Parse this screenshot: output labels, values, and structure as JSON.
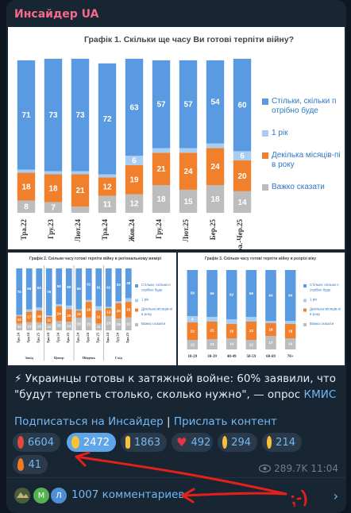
{
  "channel": {
    "name": "Инсайдер UA",
    "accent": "#f46b8a"
  },
  "chart_data": [
    {
      "type": "bar",
      "title": "Графік 1. Скільки ще часу Ви готові терпіти війну?",
      "categories": [
        "Тра.22",
        "Гру.23",
        "Лют.24",
        "Тра.24",
        "Жов.24",
        "Гру.24",
        "Лют.25",
        "Бер.25",
        "Тра.-Чер.25"
      ],
      "series": [
        {
          "name": "Стільки, скільки потрібно буде",
          "color": "#5a9ae0",
          "values": [
            71,
            73,
            73,
            72,
            63,
            57,
            57,
            54,
            60
          ]
        },
        {
          "name": "1 рік",
          "color": "#a9cdf0",
          "values": [
            2,
            2,
            2,
            2,
            6,
            3,
            3,
            3,
            6
          ]
        },
        {
          "name": "Декілька місяців-пів року",
          "color": "#f0802c",
          "values": [
            18,
            18,
            21,
            12,
            19,
            21,
            24,
            24,
            20
          ]
        },
        {
          "name": "Важко сказати",
          "color": "#bdbdbd",
          "values": [
            8,
            7,
            4,
            11,
            12,
            18,
            15,
            18,
            14
          ]
        }
      ],
      "stacked": true,
      "legend": "right"
    },
    {
      "type": "bar",
      "title": "Графік 2. Скільки часу готові терпіти війну в регіональному вимірі",
      "categories": [
        "Тра.24",
        "Гру.24",
        "Тра.25",
        "Тра.24",
        "Гру.24",
        "Тра.25",
        "Тра.24",
        "Гру.24",
        "Тра.25",
        "Тра.24",
        "Гру.24",
        "Тра.25"
      ],
      "groups": [
        "Захід",
        "Центр",
        "Південь",
        "Схід"
      ],
      "series": [
        {
          "name": "Стільки, скільки потрібно буде",
          "color": "#5a9ae0",
          "values": [
            75,
            66,
            63,
            76,
            58,
            60,
            66,
            51,
            61,
            62,
            53,
            48
          ]
        },
        {
          "name": "1 рік",
          "color": "#a9cdf0",
          "values": [
            2,
            4,
            5,
            2,
            3,
            6,
            2,
            3,
            7,
            2,
            3,
            6
          ]
        },
        {
          "name": "Декілька місяців-пів року",
          "color": "#f0802c",
          "values": [
            12,
            17,
            19,
            11,
            24,
            20,
            12,
            25,
            21,
            13,
            25,
            25
          ]
        },
        {
          "name": "Важко сказати",
          "color": "#bdbdbd",
          "values": [
            11,
            13,
            13,
            11,
            15,
            14,
            20,
            21,
            11,
            23,
            19,
            21
          ]
        }
      ],
      "stacked": true,
      "legend": "right"
    },
    {
      "type": "bar",
      "title": "Графік 3. Скільки часу готові терпіти війну в розрізі віку",
      "categories": [
        "18-29",
        "30-39",
        "40-49",
        "50-59",
        "60-69",
        "70+"
      ],
      "series": [
        {
          "name": "Стільки, скільки потрібно буде",
          "color": "#5a9ae0",
          "values": [
            58,
            59,
            62,
            59,
            64,
            64
          ]
        },
        {
          "name": "1 рік",
          "color": "#a9cdf0",
          "values": [
            8,
            6,
            6,
            6,
            3,
            4
          ]
        },
        {
          "name": "Декілька місяців-пів року",
          "color": "#f0802c",
          "values": [
            22,
            22,
            18,
            23,
            16,
            18
          ]
        },
        {
          "name": "Важко сказати",
          "color": "#bdbdbd",
          "values": [
            12,
            13,
            14,
            12,
            17,
            14
          ]
        }
      ],
      "stacked": true,
      "legend": "right"
    }
  ],
  "post": {
    "emoji": "⚡",
    "text": "Украинцы готовы к затяжной войне: 60% заявили, что \"будут терпеть столько, сколько нужно\", — опрос ",
    "link": "КМИС"
  },
  "links": {
    "subscribe": "Подписаться на Инсайдер",
    "separator": "|",
    "submit": "Прислать контент"
  },
  "reactions": [
    {
      "emoji": "angry-face-icon",
      "color": "#e24a3a",
      "count": "6604",
      "selected": false
    },
    {
      "emoji": "grinning-face-icon",
      "color": "#f7c23a",
      "count": "2472",
      "selected": true
    },
    {
      "emoji": "thumbs-up-icon",
      "color": "#f7c23a",
      "count": "1863",
      "selected": false
    },
    {
      "emoji": "heart-icon",
      "color": "#e8334a",
      "count": "492",
      "selected": false
    },
    {
      "emoji": "crying-face-icon",
      "color": "#f7c23a",
      "count": "294",
      "selected": false
    },
    {
      "emoji": "thinking-face-icon",
      "color": "#f7c23a",
      "count": "214",
      "selected": false
    },
    {
      "emoji": "fire-icon",
      "color": "#f07a20",
      "count": "41",
      "selected": false
    }
  ],
  "meta": {
    "views": "289.7K",
    "time": "11:04"
  },
  "comments": {
    "label": "1007 комментариев",
    "avatars": [
      {
        "letter": "",
        "color": "#4a5d3a"
      },
      {
        "letter": "М",
        "color": "#55b04f"
      },
      {
        "letter": "Л",
        "color": "#4f8fd6"
      }
    ]
  },
  "annotation": {
    "text": ";-)",
    "color": "#e5201b"
  }
}
